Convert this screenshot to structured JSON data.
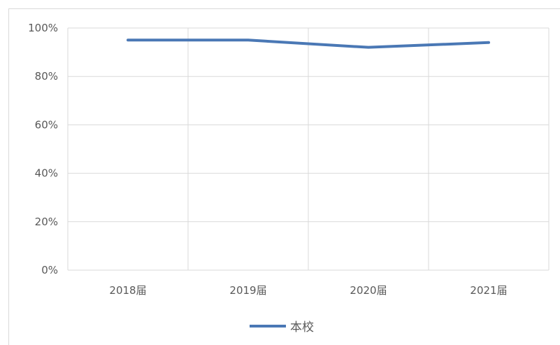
{
  "chart_data": {
    "type": "line",
    "title": "",
    "xlabel": "",
    "ylabel": "",
    "categories": [
      "2018届",
      "2019届",
      "2020届",
      "2021届"
    ],
    "series": [
      {
        "name": "本校",
        "values": [
          95,
          95,
          92,
          94
        ],
        "color": "#4a78b5"
      }
    ],
    "ylim": [
      0,
      100
    ],
    "y_ticks": [
      0,
      20,
      40,
      60,
      80,
      100
    ],
    "y_tick_labels": [
      "0%",
      "20%",
      "40%",
      "60%",
      "80%",
      "100%"
    ],
    "grid": true,
    "legend_position": "bottom",
    "colors": {
      "gridline": "#d9d9d9",
      "axis_text": "#595959",
      "frame": "#d9d9d9"
    }
  }
}
